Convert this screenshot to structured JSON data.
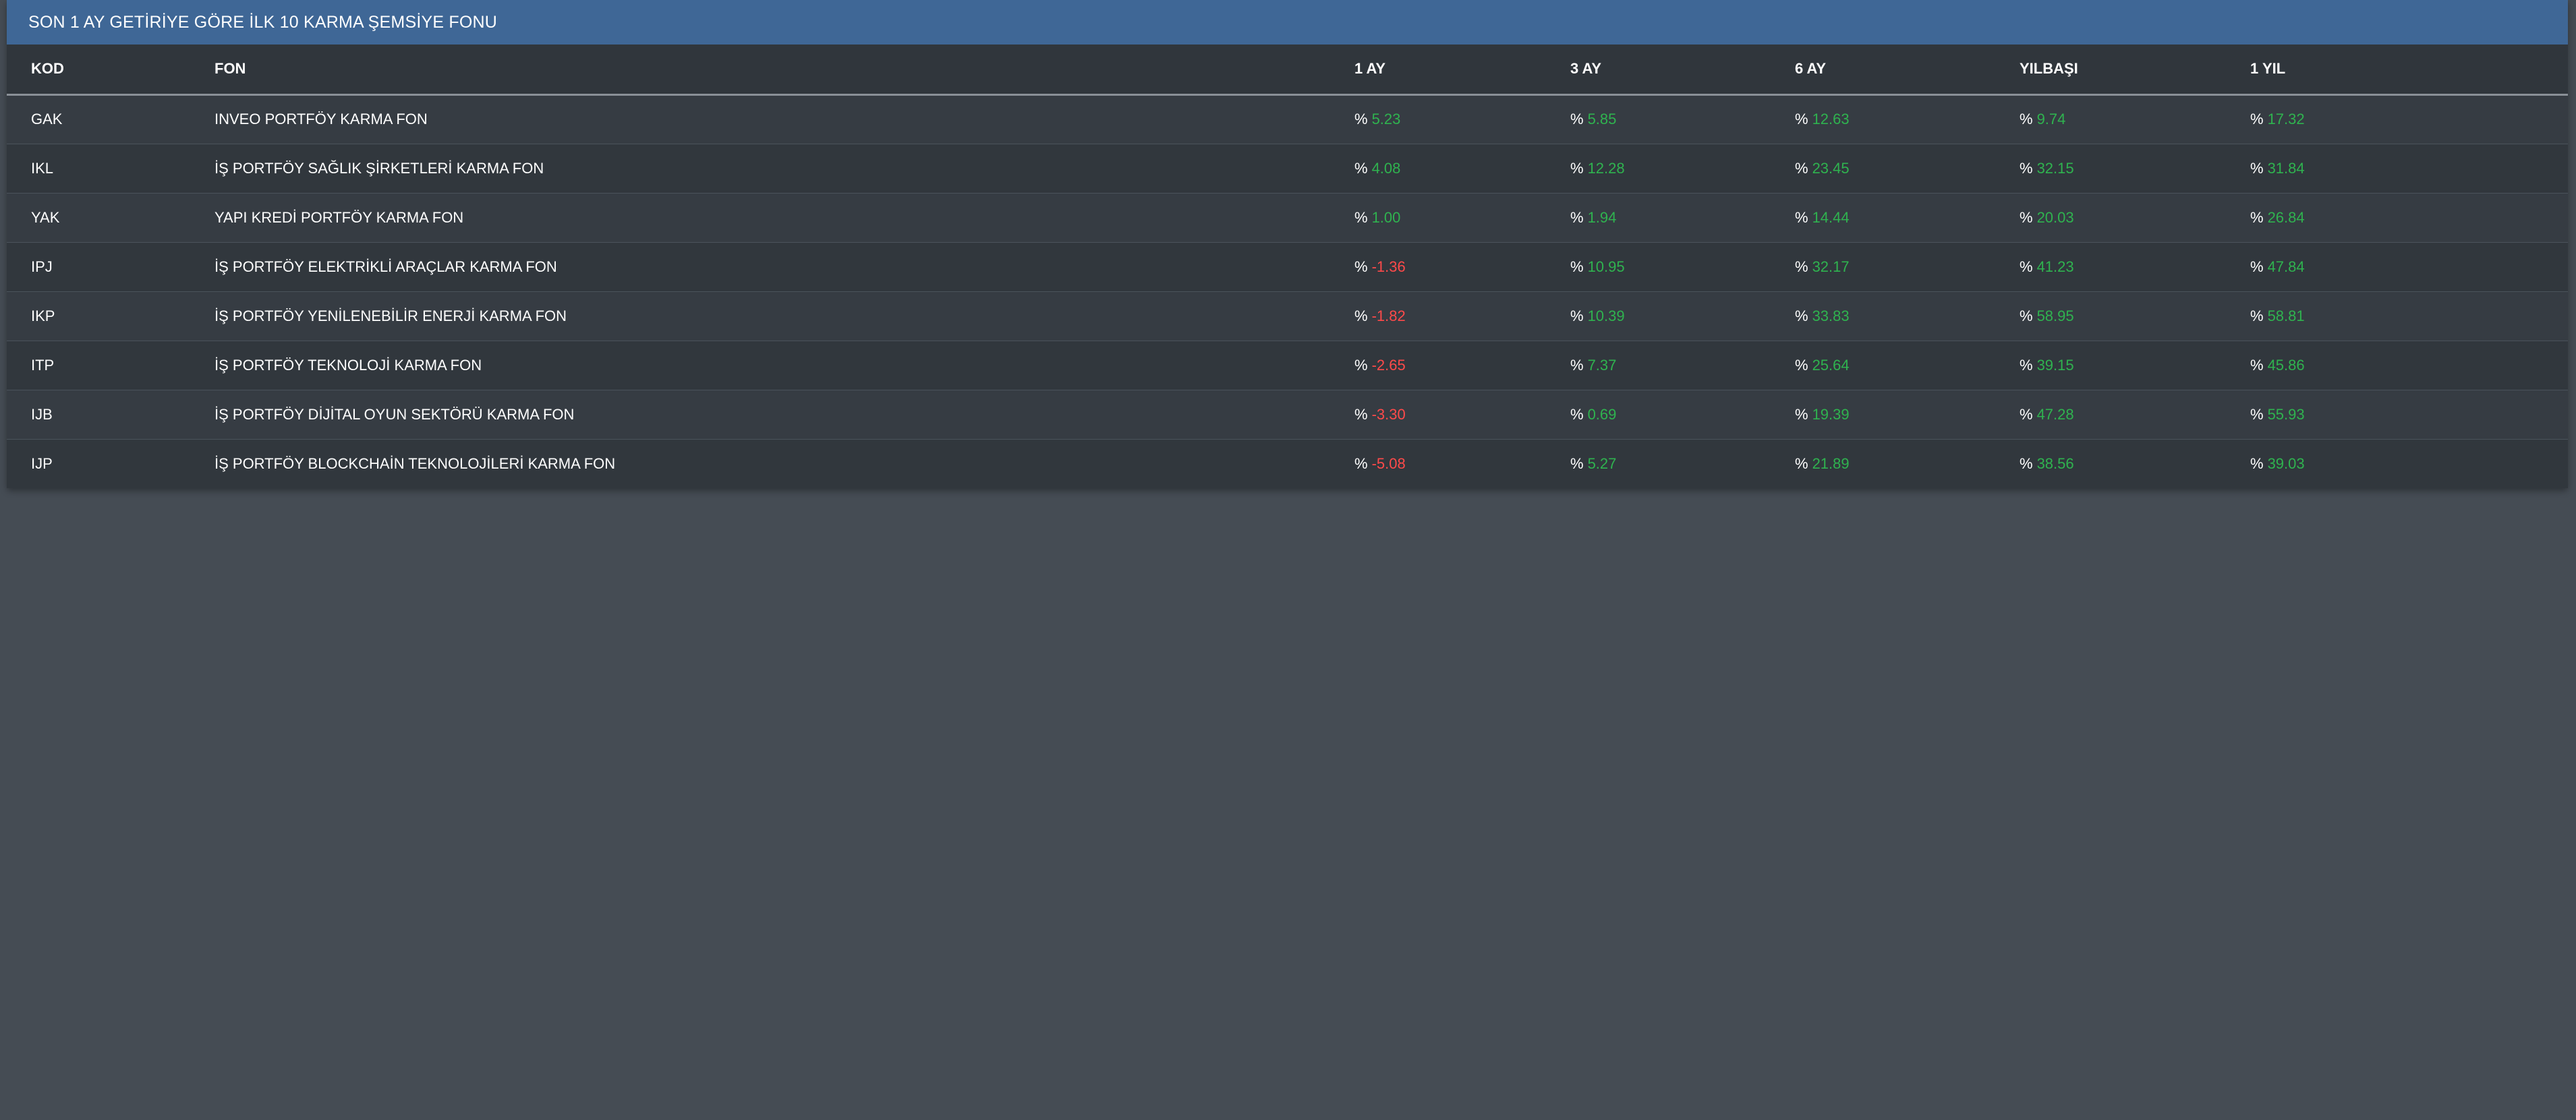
{
  "panel": {
    "title": "SON 1 AY GETİRİYE GÖRE İLK 10 KARMA ŞEMSİYE FONU"
  },
  "table": {
    "headers": {
      "kod": "KOD",
      "fon": "FON",
      "ay1": "1 AY",
      "ay3": "3 AY",
      "ay6": "6 AY",
      "yilbasi": "YILBAŞI",
      "yil1": "1 YIL"
    },
    "percent_symbol": "%",
    "colors": {
      "positive": "#2fb34f",
      "negative": "#ff4a4a"
    },
    "rows": [
      {
        "kod": "GAK",
        "fon": "INVEO PORTFÖY KARMA FON",
        "ay1": "5.23",
        "ay3": "5.85",
        "ay6": "12.63",
        "yilbasi": "9.74",
        "yil1": "17.32"
      },
      {
        "kod": "IKL",
        "fon": "İŞ PORTFÖY SAĞLIK ŞİRKETLERİ KARMA FON",
        "ay1": "4.08",
        "ay3": "12.28",
        "ay6": "23.45",
        "yilbasi": "32.15",
        "yil1": "31.84"
      },
      {
        "kod": "YAK",
        "fon": "YAPI KREDİ PORTFÖY KARMA FON",
        "ay1": "1.00",
        "ay3": "1.94",
        "ay6": "14.44",
        "yilbasi": "20.03",
        "yil1": "26.84"
      },
      {
        "kod": "IPJ",
        "fon": "İŞ PORTFÖY ELEKTRİKLİ ARAÇLAR KARMA FON",
        "ay1": "-1.36",
        "ay3": "10.95",
        "ay6": "32.17",
        "yilbasi": "41.23",
        "yil1": "47.84"
      },
      {
        "kod": "IKP",
        "fon": "İŞ PORTFÖY YENİLENEBİLİR ENERJİ KARMA FON",
        "ay1": "-1.82",
        "ay3": "10.39",
        "ay6": "33.83",
        "yilbasi": "58.95",
        "yil1": "58.81"
      },
      {
        "kod": "ITP",
        "fon": "İŞ PORTFÖY TEKNOLOJİ KARMA FON",
        "ay1": "-2.65",
        "ay3": "7.37",
        "ay6": "25.64",
        "yilbasi": "39.15",
        "yil1": "45.86"
      },
      {
        "kod": "IJB",
        "fon": "İŞ PORTFÖY DİJİTAL OYUN SEKTÖRÜ KARMA FON",
        "ay1": "-3.30",
        "ay3": "0.69",
        "ay6": "19.39",
        "yilbasi": "47.28",
        "yil1": "55.93"
      },
      {
        "kod": "IJP",
        "fon": "İŞ PORTFÖY BLOCKCHAİN TEKNOLOJİLERİ KARMA FON",
        "ay1": "-5.08",
        "ay3": "5.27",
        "ay6": "21.89",
        "yilbasi": "38.56",
        "yil1": "39.03"
      }
    ]
  }
}
